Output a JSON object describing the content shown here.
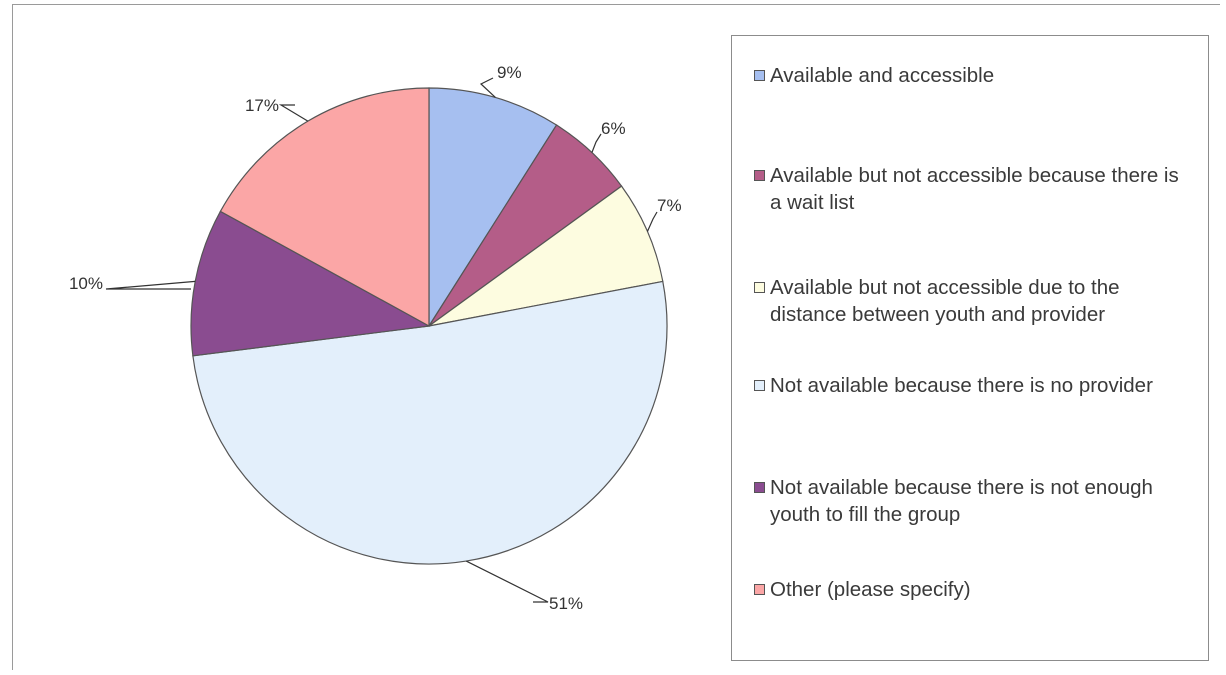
{
  "chart_data": {
    "type": "pie",
    "slices": [
      {
        "label": "Available and accessible",
        "value": 9,
        "value_label": "9%",
        "color": "#a6bff0"
      },
      {
        "label": "Available but not accessible because there is a wait list",
        "value": 6,
        "value_label": "6%",
        "color": "#b45d88"
      },
      {
        "label": "Available but not accessible due to the distance between youth and provider",
        "value": 7,
        "value_label": "7%",
        "color": "#fdfce0"
      },
      {
        "label": "Not available because there is no provider",
        "value": 51,
        "value_label": "51%",
        "color": "#e3effb"
      },
      {
        "label": "Not available because there is not enough youth to fill the group",
        "value": 10,
        "value_label": "10%",
        "color": "#8a4c90"
      },
      {
        "label": "Other (please specify)",
        "value": 17,
        "value_label": "17%",
        "color": "#fba6a6"
      }
    ],
    "legend_position": "right"
  }
}
